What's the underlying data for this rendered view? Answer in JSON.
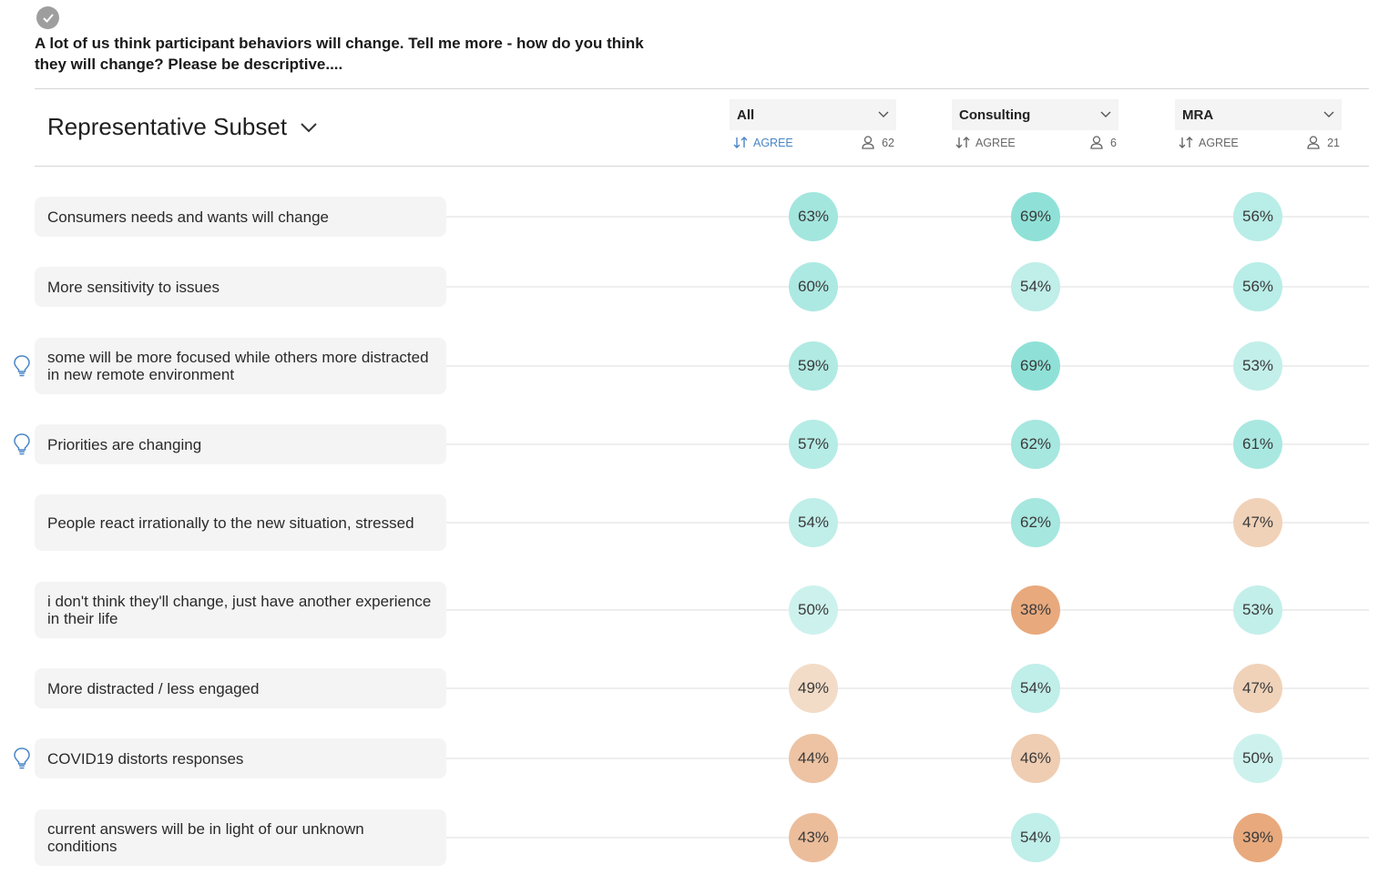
{
  "question": "A lot of us think participant behaviors will change. Tell me more - how do you think they will change? Please be descriptive....",
  "subset_title": "Representative Subset",
  "columns": [
    {
      "segment": "All",
      "sort_label": "AGREE",
      "count": "62",
      "sort_active": true
    },
    {
      "segment": "Consulting",
      "sort_label": "AGREE",
      "count": "6",
      "sort_active": false
    },
    {
      "segment": "MRA",
      "sort_label": "AGREE",
      "count": "21",
      "sort_active": false
    }
  ],
  "colors": {
    "teal_light": "#cdf2ee",
    "teal_dark": "#8fe1d7",
    "orange_light": "#f2dcc8",
    "orange_dark": "#e8a97d",
    "accent": "#4a86c5"
  },
  "rows": [
    {
      "text": "Consumers needs and wants will change",
      "insight": false,
      "values": [
        "63%",
        "69%",
        "56%"
      ]
    },
    {
      "text": "More sensitivity to issues",
      "insight": false,
      "values": [
        "60%",
        "54%",
        "56%"
      ]
    },
    {
      "text": "some will be more focused while others more distracted in new remote environment",
      "insight": true,
      "values": [
        "59%",
        "69%",
        "53%"
      ]
    },
    {
      "text": "Priorities are changing",
      "insight": true,
      "values": [
        "57%",
        "62%",
        "61%"
      ]
    },
    {
      "text": "People react irrationally to the new situation, stressed",
      "insight": false,
      "values": [
        "54%",
        "62%",
        "47%"
      ]
    },
    {
      "text": "i don't think they'll change, just have another experience in their life",
      "insight": false,
      "values": [
        "50%",
        "38%",
        "53%"
      ]
    },
    {
      "text": "More distracted / less engaged",
      "insight": false,
      "values": [
        "49%",
        "54%",
        "47%"
      ]
    },
    {
      "text": "COVID19 distorts responses",
      "insight": true,
      "values": [
        "44%",
        "46%",
        "50%"
      ]
    },
    {
      "text": "current answers will be in light of our unknown conditions",
      "insight": false,
      "values": [
        "43%",
        "54%",
        "39%"
      ]
    }
  ]
}
